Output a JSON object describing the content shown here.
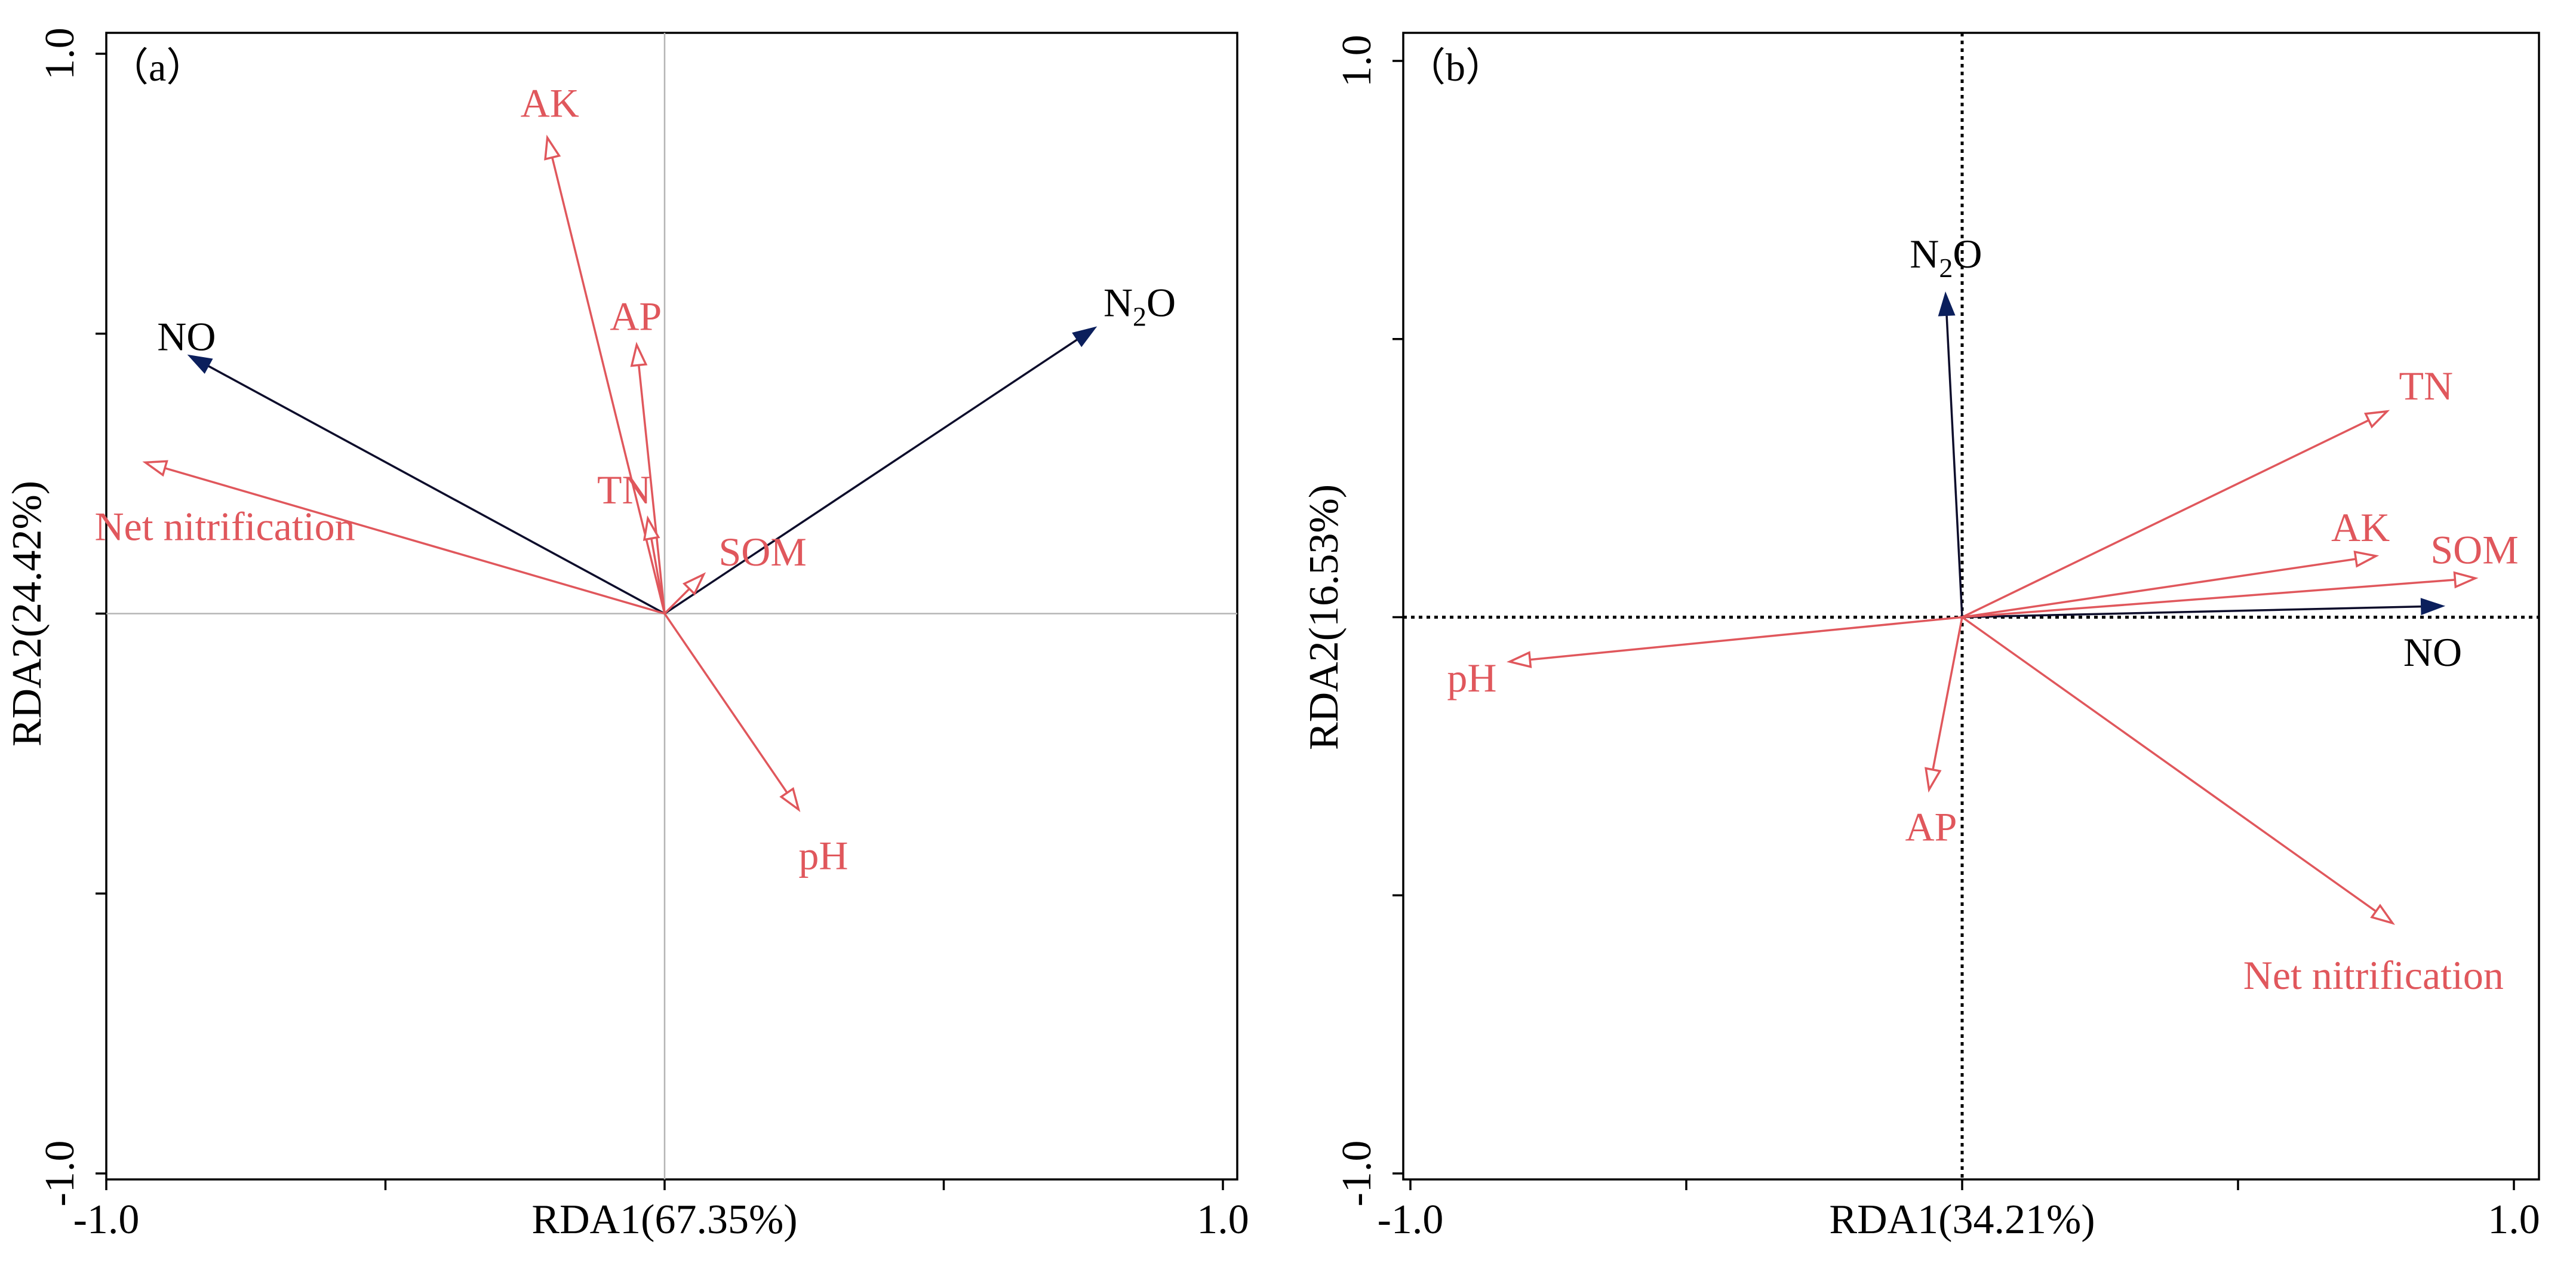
{
  "colors": {
    "response": "#0d0d2b",
    "response_head": "#0b1f5c",
    "explanatory": "#e0575c"
  },
  "chart_data": [
    {
      "type": "biplot",
      "panel_label": "（a）",
      "xlabel": "RDA1(67.35%)",
      "ylabel": "RDA2(24.42%)",
      "xlim": [
        -1.0,
        1.0
      ],
      "ylim": [
        -1.0,
        1.0
      ],
      "x_tick_labels": [
        "-1.0",
        "1.0"
      ],
      "y_tick_labels": [
        "1.0",
        "-1.0"
      ],
      "zero_line_style": "solid-gray",
      "vectors": [
        {
          "name": "NO",
          "group": "response",
          "x": -0.85,
          "y": 0.46,
          "label_parts": [
            "NO"
          ]
        },
        {
          "name": "N2O",
          "group": "response",
          "x": 0.77,
          "y": 0.51,
          "label_parts": [
            "N",
            "2",
            "O"
          ]
        },
        {
          "name": "AK",
          "group": "explanatory",
          "x": -0.21,
          "y": 0.85,
          "label_parts": [
            "AK"
          ]
        },
        {
          "name": "AP",
          "group": "explanatory",
          "x": -0.05,
          "y": 0.48,
          "label_parts": [
            "AP"
          ]
        },
        {
          "name": "TN",
          "group": "explanatory",
          "x": -0.03,
          "y": 0.17,
          "label_parts": [
            "TN"
          ]
        },
        {
          "name": "SOM",
          "group": "explanatory",
          "x": 0.07,
          "y": 0.07,
          "label_parts": [
            "SOM"
          ]
        },
        {
          "name": "Net nitrification",
          "group": "explanatory",
          "x": -0.93,
          "y": 0.27,
          "label_parts": [
            "Net nitrification"
          ]
        },
        {
          "name": "pH",
          "group": "explanatory",
          "x": 0.24,
          "y": -0.35,
          "label_parts": [
            "pH"
          ]
        }
      ]
    },
    {
      "type": "biplot",
      "panel_label": "（b）",
      "xlabel": "RDA1(34.21%)",
      "ylabel": "RDA2(16.53%)",
      "xlim": [
        -1.0,
        1.0
      ],
      "ylim": [
        -1.0,
        1.0
      ],
      "x_tick_labels": [
        "-1.0",
        "1.0"
      ],
      "y_tick_labels": [
        "1.0",
        "-1.0"
      ],
      "zero_line_style": "dotted-black",
      "vectors": [
        {
          "name": "N2O",
          "group": "response",
          "x": -0.03,
          "y": 0.58,
          "label_parts": [
            "N",
            "2",
            "O"
          ]
        },
        {
          "name": "NO",
          "group": "response",
          "x": 0.87,
          "y": 0.02,
          "label_parts": [
            "NO"
          ]
        },
        {
          "name": "TN",
          "group": "explanatory",
          "x": 0.77,
          "y": 0.37,
          "label_parts": [
            "TN"
          ]
        },
        {
          "name": "AK",
          "group": "explanatory",
          "x": 0.75,
          "y": 0.11,
          "label_parts": [
            "AK"
          ]
        },
        {
          "name": "SOM",
          "group": "explanatory",
          "x": 0.93,
          "y": 0.07,
          "label_parts": [
            "SOM"
          ]
        },
        {
          "name": "pH",
          "group": "explanatory",
          "x": -0.82,
          "y": -0.08,
          "label_parts": [
            "pH"
          ]
        },
        {
          "name": "AP",
          "group": "explanatory",
          "x": -0.06,
          "y": -0.31,
          "label_parts": [
            "AP"
          ]
        },
        {
          "name": "Net nitrification",
          "group": "explanatory",
          "x": 0.78,
          "y": -0.55,
          "label_parts": [
            "Net nitrification"
          ]
        }
      ]
    }
  ]
}
